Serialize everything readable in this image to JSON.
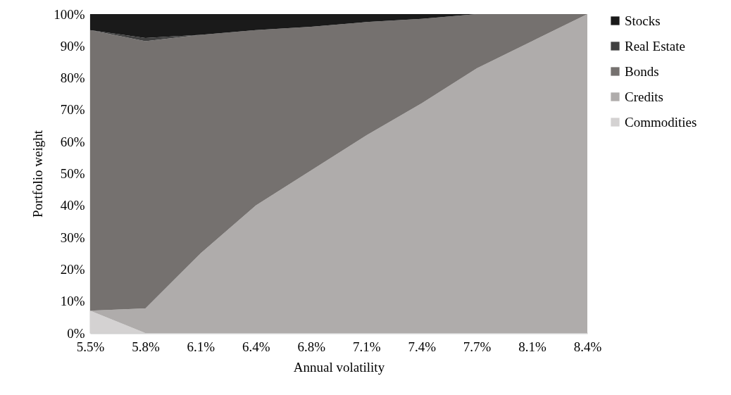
{
  "chart_data": {
    "type": "area",
    "stacked": true,
    "xlabel": "Annual volatility",
    "ylabel": "Portfolio weight",
    "legend": "right",
    "categories": [
      "5.5%",
      "5.8%",
      "6.1%",
      "6.4%",
      "6.8%",
      "7.1%",
      "7.4%",
      "7.7%",
      "8.1%",
      "8.4%"
    ],
    "ylim": [
      0,
      100
    ],
    "yticks": [
      {
        "value": 0,
        "label": "0%"
      },
      {
        "value": 10,
        "label": "10%"
      },
      {
        "value": 20,
        "label": "20%"
      },
      {
        "value": 30,
        "label": "30%"
      },
      {
        "value": 40,
        "label": "40%"
      },
      {
        "value": 50,
        "label": "50%"
      },
      {
        "value": 60,
        "label": "60%"
      },
      {
        "value": 70,
        "label": "70%"
      },
      {
        "value": 80,
        "label": "80%"
      },
      {
        "value": 90,
        "label": "90%"
      },
      {
        "value": 100,
        "label": "100%"
      }
    ],
    "series": [
      {
        "name": "Commodities",
        "color": "#d4d2d2",
        "values": [
          7,
          0,
          0,
          0,
          0,
          0,
          0,
          0,
          0,
          0
        ]
      },
      {
        "name": "Credits",
        "color": "#afacab",
        "values": [
          0,
          7.7,
          25,
          40,
          51,
          62,
          72,
          83,
          91.5,
          100
        ]
      },
      {
        "name": "Bonds",
        "color": "#75716f",
        "values": [
          88,
          83.8,
          68.5,
          55,
          45,
          35.5,
          26.5,
          17,
          8.5,
          0
        ]
      },
      {
        "name": "Real Estate",
        "color": "#404040",
        "values": [
          0,
          1,
          0,
          0,
          0,
          0,
          0,
          0,
          0,
          0
        ]
      },
      {
        "name": "Stocks",
        "color": "#1a1a1a",
        "values": [
          5,
          7.5,
          6.5,
          5,
          4,
          2.5,
          1.5,
          0,
          0,
          0
        ]
      }
    ]
  }
}
